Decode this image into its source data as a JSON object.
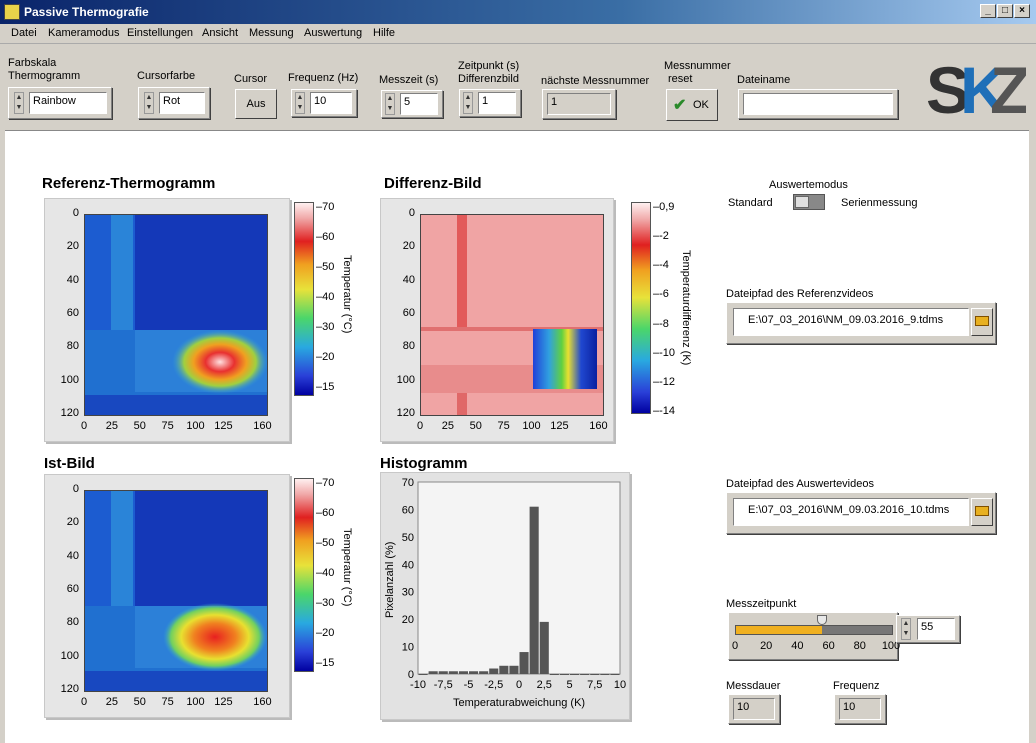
{
  "window": {
    "title": "Passive Thermografie",
    "buttons": [
      "_",
      "□",
      "×"
    ]
  },
  "menu": [
    "Datei",
    "Kameramodus",
    "Einstellungen",
    "Ansicht",
    "Messung",
    "Auswertung",
    "Hilfe"
  ],
  "toolbar": {
    "farbskala_label1": "Farbskala",
    "farbskala_label2": "Thermogramm",
    "farbskala_value": "Rainbow",
    "cursorfarbe_label": "Cursorfarbe",
    "cursorfarbe_value": "Rot",
    "cursor_label": "Cursor",
    "cursor_button": "Aus",
    "frequenz_label": "Frequenz (Hz)",
    "frequenz_value": "10",
    "messzeit_label": "Messzeit (s)",
    "messzeit_value": "5",
    "zeitpunkt_label1": "Zeitpunkt (s)",
    "zeitpunkt_label2": "Differenzbild",
    "zeitpunkt_value": "1",
    "messnummer_label": "nächste  Messnummer",
    "messnummer_value": "1",
    "reset_label1": "Messnummer",
    "reset_label2": "reset",
    "reset_button": "OK",
    "dateiname_label": "Dateiname",
    "dateiname_value": "",
    "logo": "SKZ"
  },
  "thermo_xticks": [
    "0",
    "25",
    "50",
    "75",
    "100",
    "125",
    "160"
  ],
  "thermo_yticks": [
    "0",
    "20",
    "40",
    "60",
    "80",
    "100",
    "120"
  ],
  "temp_ticks": [
    "70",
    "60",
    "50",
    "40",
    "30",
    "20",
    "15"
  ],
  "diff_ticks": [
    "0,9",
    "-2",
    "-4",
    "-6",
    "-8",
    "-10",
    "-12",
    "-14"
  ],
  "referenz": {
    "title": "Referenz-Thermogramm",
    "clabel": "Temperatur (°C)"
  },
  "differenz": {
    "title": "Differenz-Bild",
    "clabel": "Temperaturdifferenz (K)"
  },
  "ist": {
    "title": "Ist-Bild",
    "clabel": "Temperatur (°C)"
  },
  "histogramm": {
    "title": "Histogramm",
    "xlabel": "Temperaturabweichung (K)",
    "ylabel": "Pixelanzahl (%)"
  },
  "auswertemodus": {
    "title": "Auswertemodus",
    "left": "Standard",
    "right": "Serienmessung"
  },
  "referenzvideo": {
    "label": "Dateipfad des Referenzvideos",
    "path": "E:\\07_03_2016\\NM_09.03.2016_9.tdms"
  },
  "auswertevideo": {
    "label": "Dateipfad des Auswertevideos",
    "path": "E:\\07_03_2016\\NM_09.03.2016_10.tdms"
  },
  "messzeitpunkt": {
    "label": "Messzeitpunkt",
    "value": "55",
    "fraction": 0.55,
    "ticks": [
      "0",
      "20",
      "40",
      "60",
      "80",
      "100"
    ]
  },
  "messdauer": {
    "label": "Messdauer",
    "value": "10"
  },
  "frequenz2": {
    "label": "Frequenz",
    "value": "10"
  },
  "colors": {
    "slider_fill": "#f0b020",
    "bar": "#555555"
  },
  "chart_data": {
    "type": "bar",
    "x": [
      -10,
      -9,
      -8,
      -7,
      -6,
      -5,
      -4,
      -3,
      -2,
      -1,
      0,
      1,
      2,
      3,
      4,
      5,
      6,
      7,
      8,
      9
    ],
    "values": [
      0,
      1,
      1,
      1,
      1,
      1,
      1,
      2,
      3,
      3,
      8,
      61,
      19,
      0,
      0,
      0,
      0,
      0,
      0,
      0
    ],
    "xticks": [
      "-10",
      "-7,5",
      "-5",
      "-2,5",
      "0",
      "2,5",
      "5",
      "7,5",
      "10"
    ],
    "yticks": [
      "70",
      "60",
      "50",
      "40",
      "30",
      "20",
      "10",
      "0"
    ],
    "xlim": [
      -10,
      10
    ],
    "ylim": [
      0,
      70
    ],
    "title": "Histogramm",
    "xlabel": "Temperaturabweichung (K)",
    "ylabel": "Pixelanzahl (%)"
  }
}
